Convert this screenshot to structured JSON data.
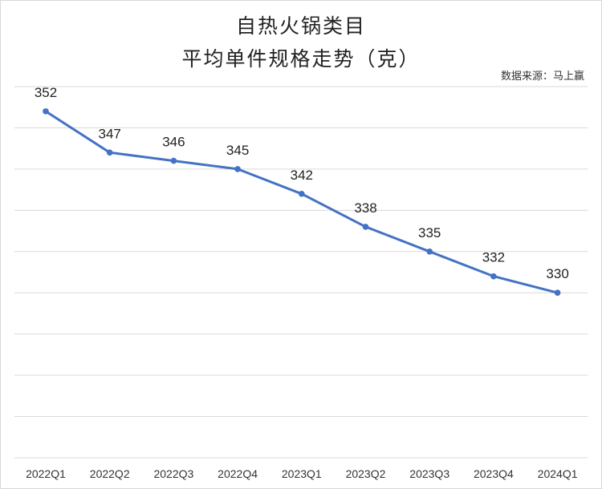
{
  "chart_data": {
    "type": "line",
    "title": "自热火锅类目",
    "subtitle": "平均单件规格走势（克）",
    "source": "数据来源：马上赢",
    "categories": [
      "2022Q1",
      "2022Q2",
      "2022Q3",
      "2022Q4",
      "2023Q1",
      "2023Q2",
      "2023Q3",
      "2023Q4",
      "2024Q1"
    ],
    "series": [
      {
        "values": [
          352,
          347,
          346,
          345,
          342,
          338,
          335,
          332,
          330
        ]
      }
    ],
    "data_labels": [
      "352",
      "347",
      "346",
      "345",
      "342",
      "338",
      "335",
      "332",
      "330"
    ],
    "ylim": [
      310,
      355
    ],
    "grid": true,
    "legend": "none",
    "xlabel": "",
    "ylabel": "",
    "colors": {
      "line": "#4472c4",
      "grid": "#d9d9d9"
    }
  }
}
